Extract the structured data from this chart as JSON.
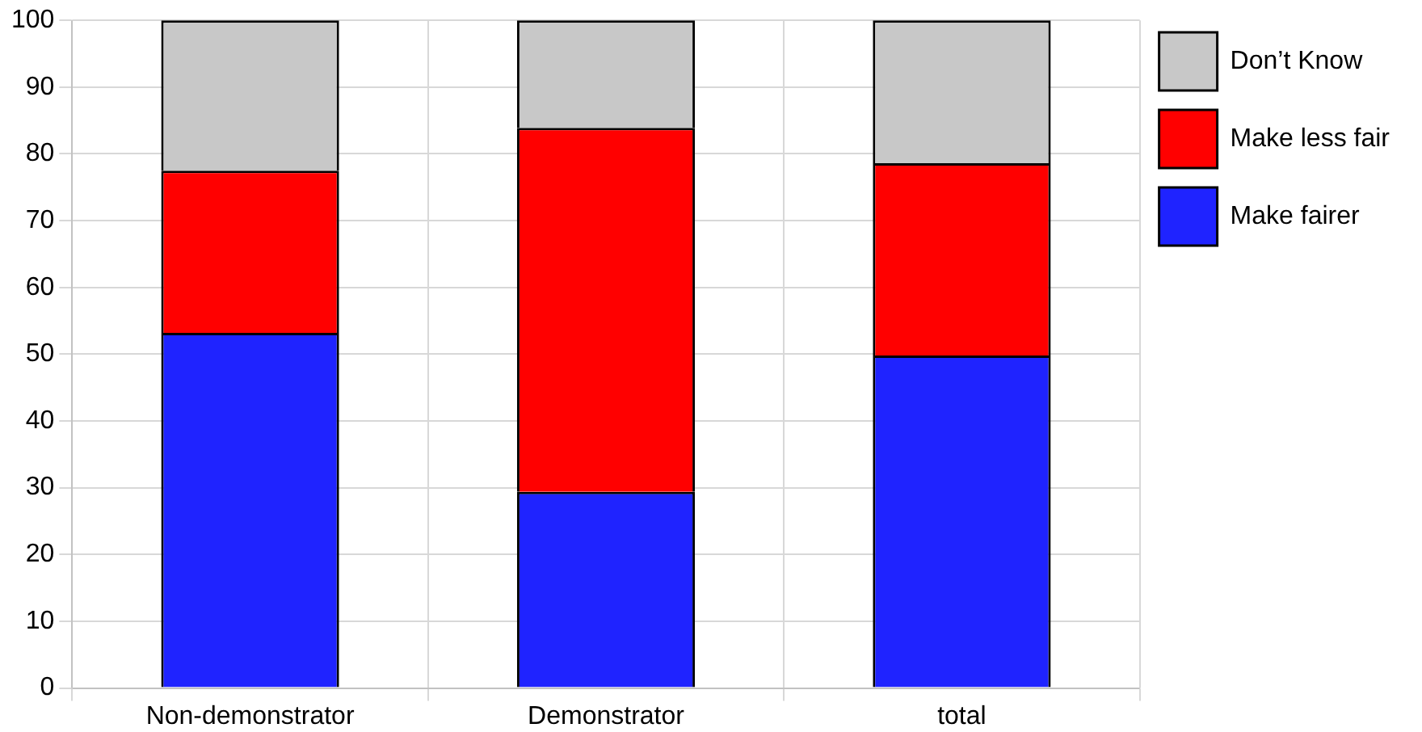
{
  "chart_data": {
    "type": "bar",
    "stacked": true,
    "categories": [
      "Non-demonstrator",
      "Demonstrator",
      "total"
    ],
    "series": [
      {
        "name": "Make fairer",
        "color": "#1f23ff",
        "values": [
          53.2,
          29.4,
          49.8
        ]
      },
      {
        "name": "Make less fair",
        "color": "#ff0000",
        "values": [
          24.3,
          54.5,
          28.8
        ]
      },
      {
        "name": "Don’t Know",
        "color": "#c8c8c8",
        "values": [
          22.5,
          16.1,
          21.4
        ]
      }
    ],
    "ylim": [
      0,
      100
    ],
    "yticks": [
      0,
      10,
      20,
      30,
      40,
      50,
      60,
      70,
      80,
      90,
      100
    ],
    "grid": true,
    "legend": "top right"
  }
}
